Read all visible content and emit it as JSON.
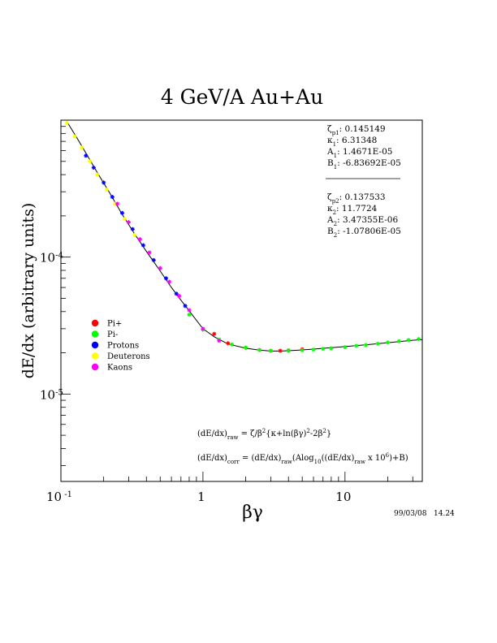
{
  "chart_data": {
    "type": "scatter",
    "title": "4 GeV/A Au+Au",
    "xlabel": "βγ",
    "ylabel": "dE/dx (arbitrary units)",
    "x_scale": "log",
    "y_scale": "log",
    "xlim": [
      0.1,
      35
    ],
    "ylim": [
      2.3e-06,
      0.001
    ],
    "x_ticks": [
      {
        "value": 0.1,
        "base": "10",
        "exp": "-1"
      },
      {
        "value": 1,
        "base": "1",
        "exp": ""
      },
      {
        "value": 10,
        "base": "10",
        "exp": ""
      }
    ],
    "y_ticks": [
      {
        "value": 0.0001,
        "base": "10",
        "exp": "-4"
      },
      {
        "value": 1e-05,
        "base": "10",
        "exp": "-5"
      }
    ],
    "grid": false,
    "legend_position": "center-left",
    "series": [
      {
        "name": "Pi+",
        "color": "#ff0000",
        "x": [
          1.2,
          1.5,
          2.0,
          2.5,
          3.0,
          3.5,
          4.0,
          5.0
        ],
        "y": [
          2.75e-05,
          2.35e-05,
          2.18e-05,
          2.1e-05,
          2.07e-05,
          2.07e-05,
          2.08e-05,
          2.12e-05
        ]
      },
      {
        "name": "Pi-",
        "color": "#00ff00",
        "x": [
          0.8,
          1.0,
          1.3,
          1.6,
          2.0,
          2.5,
          3.0,
          4.0,
          5.0,
          6.0,
          7.0,
          8.0,
          10.0,
          12.0,
          14.0,
          17.0,
          20.0,
          24.0,
          28.0,
          33.0
        ],
        "y": [
          3.8e-05,
          2.95e-05,
          2.5e-05,
          2.3e-05,
          2.18e-05,
          2.1e-05,
          2.07e-05,
          2.07e-05,
          2.09e-05,
          2.11e-05,
          2.14e-05,
          2.16e-05,
          2.2e-05,
          2.25e-05,
          2.28e-05,
          2.33e-05,
          2.38e-05,
          2.43e-05,
          2.48e-05,
          2.52e-05
        ]
      },
      {
        "name": "Protons",
        "color": "#0000ff",
        "x": [
          0.15,
          0.17,
          0.2,
          0.23,
          0.27,
          0.32,
          0.38,
          0.45,
          0.55,
          0.65,
          0.75
        ],
        "y": [
          0.00055,
          0.00045,
          0.00035,
          0.000275,
          0.00021,
          0.00016,
          0.000122,
          9.5e-05,
          7e-05,
          5.4e-05,
          4.4e-05
        ]
      },
      {
        "name": "Deuterons",
        "color": "#ffff00",
        "x": [
          0.11,
          0.125,
          0.14,
          0.16,
          0.18,
          0.21,
          0.24,
          0.28,
          0.33
        ],
        "y": [
          0.00095,
          0.00076,
          0.00063,
          0.0005,
          0.0004,
          0.00031,
          0.000245,
          0.00019,
          0.000145
        ]
      },
      {
        "name": "Kaons",
        "color": "#ff00ff",
        "x": [
          0.25,
          0.3,
          0.36,
          0.42,
          0.5,
          0.58,
          0.68,
          0.8,
          1.0,
          1.3
        ],
        "y": [
          0.000245,
          0.00018,
          0.000135,
          0.000108,
          8.3e-05,
          6.6e-05,
          5.2e-05,
          4.1e-05,
          3e-05,
          2.45e-05
        ]
      }
    ],
    "fit_curve": {
      "x": [
        0.11,
        0.13,
        0.15,
        0.18,
        0.22,
        0.27,
        0.33,
        0.4,
        0.5,
        0.6,
        0.7,
        0.8,
        1.0,
        1.2,
        1.5,
        2.0,
        2.5,
        3.0,
        3.5,
        4.0,
        5.0,
        6.0,
        8.0,
        10.0,
        15.0,
        20.0,
        30.0,
        35.0
      ],
      "y": [
        0.00098,
        0.00074,
        0.000575,
        0.000415,
        0.000295,
        0.000205,
        0.000148,
        0.00011,
        7.9e-05,
        6e-05,
        4.85e-05,
        4.05e-05,
        3e-05,
        2.62e-05,
        2.32e-05,
        2.16e-05,
        2.09e-05,
        2.06e-05,
        2.06e-05,
        2.07e-05,
        2.1e-05,
        2.13e-05,
        2.18e-05,
        2.22e-05,
        2.3e-05,
        2.37e-05,
        2.47e-05,
        2.5e-05
      ]
    },
    "fit_params_1": [
      {
        "sym": "ζ",
        "sub": "p1",
        "value": "0.145149"
      },
      {
        "sym": "κ",
        "sub": "1",
        "value": "6.31348"
      },
      {
        "sym": "A",
        "sub": "1",
        "value": "1.4671E-05"
      },
      {
        "sym": "B",
        "sub": "1",
        "value": "-6.83692E-05"
      }
    ],
    "fit_params_2": [
      {
        "sym": "ζ",
        "sub": "p2",
        "value": "0.137533"
      },
      {
        "sym": "κ",
        "sub": "2",
        "value": "11.7724"
      },
      {
        "sym": "A",
        "sub": "2",
        "value": "3.47355E-06"
      },
      {
        "sym": "B",
        "sub": "2",
        "value": "-1.07806E-05"
      }
    ],
    "formula_raw": {
      "lhs": "(dE/dx)",
      "lhs_sub": "raw",
      "body_1": " = ζ/β",
      "sup_1": "2",
      "body_2": "{κ+ln(βγ)",
      "sup_2": "2",
      "body_3": "-2β",
      "sup_3": "2",
      "body_4": "}"
    },
    "formula_corr": {
      "lhs": "(dE/dx)",
      "lhs_sub": "corr",
      "body_1": " = (dE/dx)",
      "sub_1": "raw",
      "body_2": "(Alog",
      "sub_2": "10",
      "body_3": "((dE/dx)",
      "sub_3": "raw",
      "body_4": " x 10",
      "sup_4": "6",
      "body_5": ")+B)"
    },
    "timestamp": "99/03/08   14.24"
  }
}
